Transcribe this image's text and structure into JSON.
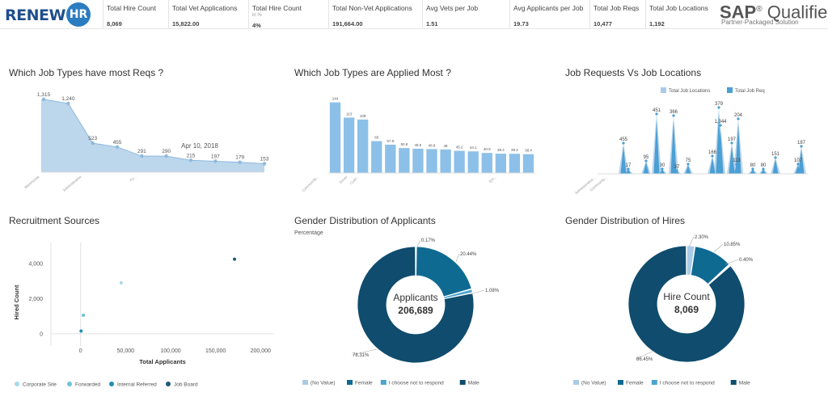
{
  "brand": {
    "logo_text": "RENEW",
    "logo_mark": "HR"
  },
  "kpis": [
    {
      "label": "Total Hire Count",
      "value": "8,069"
    },
    {
      "label": "Total Vet Applications",
      "value": "15,822.00"
    },
    {
      "label": "Total Hire Count",
      "sub": "in %",
      "value": "4%"
    },
    {
      "label": "Total Non-Vet Applications",
      "value": "191,664.00"
    },
    {
      "label": "Avg Vets per Job",
      "value": "1.51"
    },
    {
      "label": "Avg Applicants per Job",
      "value": "19.73"
    },
    {
      "label": "Total Job Reqs",
      "value": "10,477"
    },
    {
      "label": "Total Job Locations",
      "value": "1,192"
    }
  ],
  "sap": {
    "brand": "SAP",
    "qualified": "Qualified",
    "subtitle": "Partner-Packaged Solution"
  },
  "chart_data": [
    {
      "id": "reqs",
      "type": "area",
      "title": "Which Job Types have most Reqs ?",
      "values": [
        1315,
        1240,
        523,
        455,
        291,
        290,
        215,
        197,
        179,
        153
      ],
      "data_labels": [
        "1,315",
        "1,240",
        "523",
        "455",
        "291",
        "290",
        "215",
        "197",
        "179",
        "153"
      ],
      "x_tick_labels": [
        "Warehouse",
        "Administrative",
        "Fo..."
      ],
      "annotation": "Apr 10, 2018",
      "colors": {
        "fill": "#bcd6ec",
        "line": "#8fb9dd",
        "marker": "#8fb9dd"
      }
    },
    {
      "id": "applied",
      "type": "bar",
      "title": "Which Job Types are Applied Most ?",
      "values": [
        144,
        113,
        109,
        65,
        57.8,
        50.8,
        49.5,
        48.8,
        48,
        45.2,
        44.1,
        40.9,
        39.4,
        39.2,
        38.4
      ],
      "data_labels": [
        "144",
        "113",
        "109",
        "65",
        "57.8",
        "50.8",
        "49.5",
        "48.8",
        "48",
        "45.2",
        "44.1",
        "40.9",
        "39.4",
        "39.2",
        "38.4"
      ],
      "x_tick_labels": [
        "Community...",
        "Driver",
        "Cust...",
        "Ent..."
      ],
      "colors": {
        "bar": "#8cc0e8"
      }
    },
    {
      "id": "reqs_vs_locations",
      "type": "area",
      "title": "Job Requests Vs Job Locations",
      "series": [
        {
          "name": "Total Job Locations",
          "color": "#a9cbe8"
        },
        {
          "name": "Total Job Req",
          "color": "#4a9fd4"
        }
      ],
      "data_labels": [
        "455",
        "17",
        "95",
        "451",
        "30",
        "366",
        "37",
        "75",
        "166",
        "379",
        "1,344",
        "197",
        "204",
        "113",
        "80",
        "80",
        "151",
        "107",
        "187"
      ],
      "x_tick_labels": [
        "Administrative...",
        "Community..."
      ]
    },
    {
      "id": "sources",
      "type": "scatter",
      "title": "Recruitment Sources",
      "xlabel": "Total Applicants",
      "ylabel": "Hired Count",
      "x_ticks": [
        "0",
        "50,000",
        "100,000",
        "150,000",
        "200,000"
      ],
      "y_ticks": [
        "0",
        "2,000",
        "4,000"
      ],
      "xlim": [
        -33000,
        215000
      ],
      "ylim": [
        -700,
        5200
      ],
      "series": [
        {
          "name": "Corporate Site",
          "color": "#a9d8e8",
          "points": [
            [
              45000,
              2900
            ]
          ]
        },
        {
          "name": "Forwarded",
          "color": "#6cc4d8",
          "points": [
            [
              3000,
              1050
            ]
          ]
        },
        {
          "name": "Internal Referred",
          "color": "#1f8fb8",
          "points": [
            [
              500,
              150
            ]
          ]
        },
        {
          "name": "Job Board",
          "color": "#1d5a7a",
          "points": [
            [
              171000,
              4250
            ]
          ]
        }
      ]
    },
    {
      "id": "applicants_gender",
      "type": "pie",
      "title": "Gender Distribution of Applicants",
      "subtitle": "Percentage",
      "center_label": "Applicants",
      "center_value": "206,689",
      "slices": [
        {
          "name": "(No Value)",
          "value": 0.17,
          "label": "0.17%",
          "color": "#a9cbe8"
        },
        {
          "name": "Female",
          "value": 20.44,
          "label": "20.44%",
          "color": "#0f6a92"
        },
        {
          "name": "I choose not to respond",
          "value": 1.08,
          "label": "1.08%",
          "color": "#4ba3cf"
        },
        {
          "name": "Male",
          "value": 78.31,
          "label": "78.31%",
          "color": "#0f4c6e"
        }
      ]
    },
    {
      "id": "hires_gender",
      "type": "pie",
      "title": "Gender Distribution of Hires",
      "center_label": "Hire Count",
      "center_value": "8,069",
      "slices": [
        {
          "name": "(No Value)",
          "value": 2.3,
          "label": "2.30%",
          "color": "#a9cbe8"
        },
        {
          "name": "Female",
          "value": 10.85,
          "label": "10.85%",
          "color": "#0f6a92"
        },
        {
          "name": "I choose not to respond",
          "value": 0.4,
          "label": "0.40%",
          "color": "#4ba3cf"
        },
        {
          "name": "Male",
          "value": 86.45,
          "label": "86.45%",
          "color": "#0f4c6e"
        }
      ]
    }
  ]
}
